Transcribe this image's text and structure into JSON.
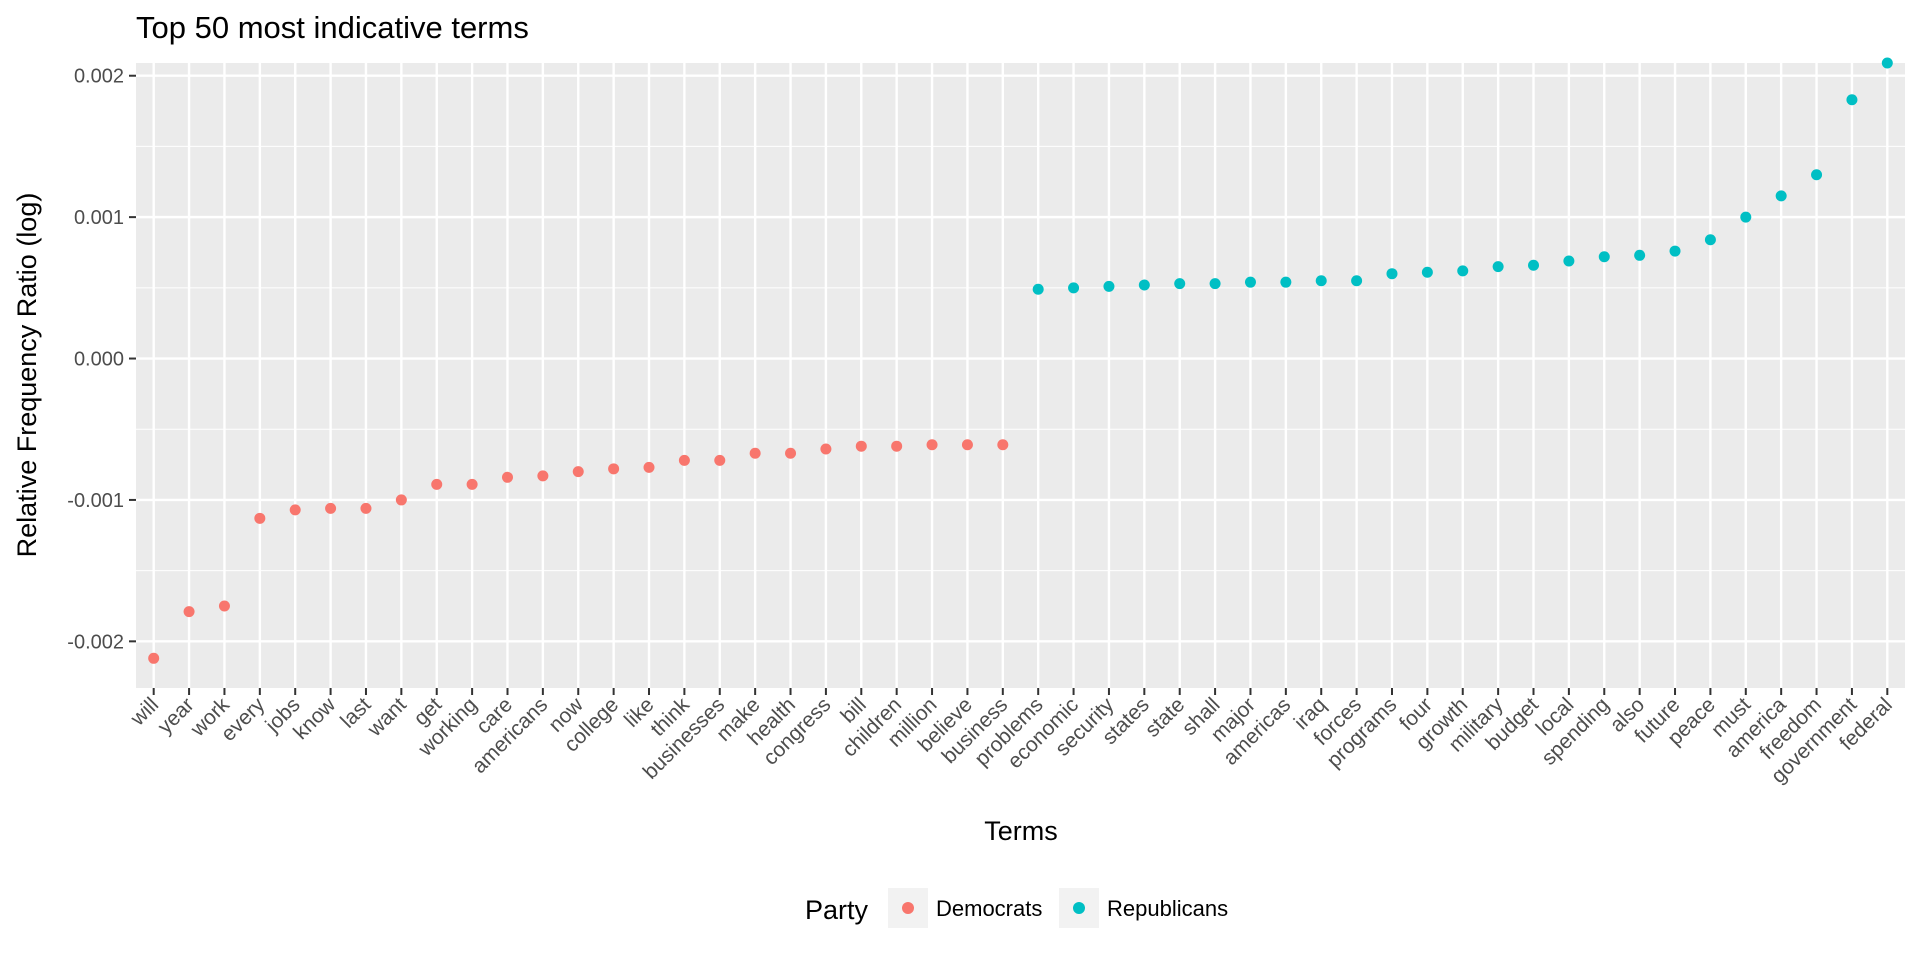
{
  "chart_data": {
    "type": "scatter",
    "title": "Top 50 most indicative terms",
    "xlabel": "Terms",
    "ylabel": "Relative Frequency Ratio (log)",
    "ylim": [
      -0.00233,
      0.00209
    ],
    "y_ticks": [
      -0.002,
      -0.001,
      0.0,
      0.001,
      0.002
    ],
    "y_tick_labels": [
      "-0.002",
      "-0.001",
      "0.000",
      "0.001",
      "0.002"
    ],
    "grid": true,
    "legend": {
      "title": "Party",
      "placement": "bottom",
      "entries": [
        {
          "name": "Democrats",
          "color": "#F8766D"
        },
        {
          "name": "Republicans",
          "color": "#00BFC4"
        }
      ]
    },
    "categories": [
      "will",
      "year",
      "work",
      "every",
      "jobs",
      "know",
      "last",
      "want",
      "get",
      "working",
      "care",
      "americans",
      "now",
      "college",
      "like",
      "think",
      "businesses",
      "make",
      "health",
      "congress",
      "bill",
      "children",
      "million",
      "believe",
      "business",
      "problems",
      "economic",
      "security",
      "states",
      "state",
      "shall",
      "major",
      "americas",
      "iraq",
      "forces",
      "programs",
      "four",
      "growth",
      "military",
      "budget",
      "local",
      "spending",
      "also",
      "future",
      "peace",
      "must",
      "america",
      "freedom",
      "government",
      "federal"
    ],
    "series": [
      {
        "name": "Democrats",
        "color": "#F8766D",
        "x": [
          "will",
          "year",
          "work",
          "every",
          "jobs",
          "know",
          "last",
          "want",
          "get",
          "working",
          "care",
          "americans",
          "now",
          "college",
          "like",
          "think",
          "businesses",
          "make",
          "health",
          "congress",
          "bill",
          "children",
          "million",
          "believe",
          "business"
        ],
        "values": [
          -0.00212,
          -0.00179,
          -0.00175,
          -0.00113,
          -0.00107,
          -0.00106,
          -0.00106,
          -0.001,
          -0.00089,
          -0.00089,
          -0.00084,
          -0.00083,
          -0.0008,
          -0.00078,
          -0.00077,
          -0.00072,
          -0.00072,
          -0.00067,
          -0.00067,
          -0.00064,
          -0.00062,
          -0.00062,
          -0.00061,
          -0.00061,
          -0.00061
        ]
      },
      {
        "name": "Republicans",
        "color": "#00BFC4",
        "x": [
          "problems",
          "economic",
          "security",
          "states",
          "state",
          "shall",
          "major",
          "americas",
          "iraq",
          "forces",
          "programs",
          "four",
          "growth",
          "military",
          "budget",
          "local",
          "spending",
          "also",
          "future",
          "peace",
          "must",
          "america",
          "freedom",
          "government",
          "federal"
        ],
        "values": [
          0.00049,
          0.0005,
          0.00051,
          0.00052,
          0.00053,
          0.00053,
          0.00054,
          0.00054,
          0.00055,
          0.00055,
          0.0006,
          0.00061,
          0.00062,
          0.00065,
          0.00066,
          0.00069,
          0.00072,
          0.00073,
          0.00076,
          0.00084,
          0.001,
          0.00115,
          0.0013,
          0.00183,
          0.00209
        ]
      }
    ]
  }
}
